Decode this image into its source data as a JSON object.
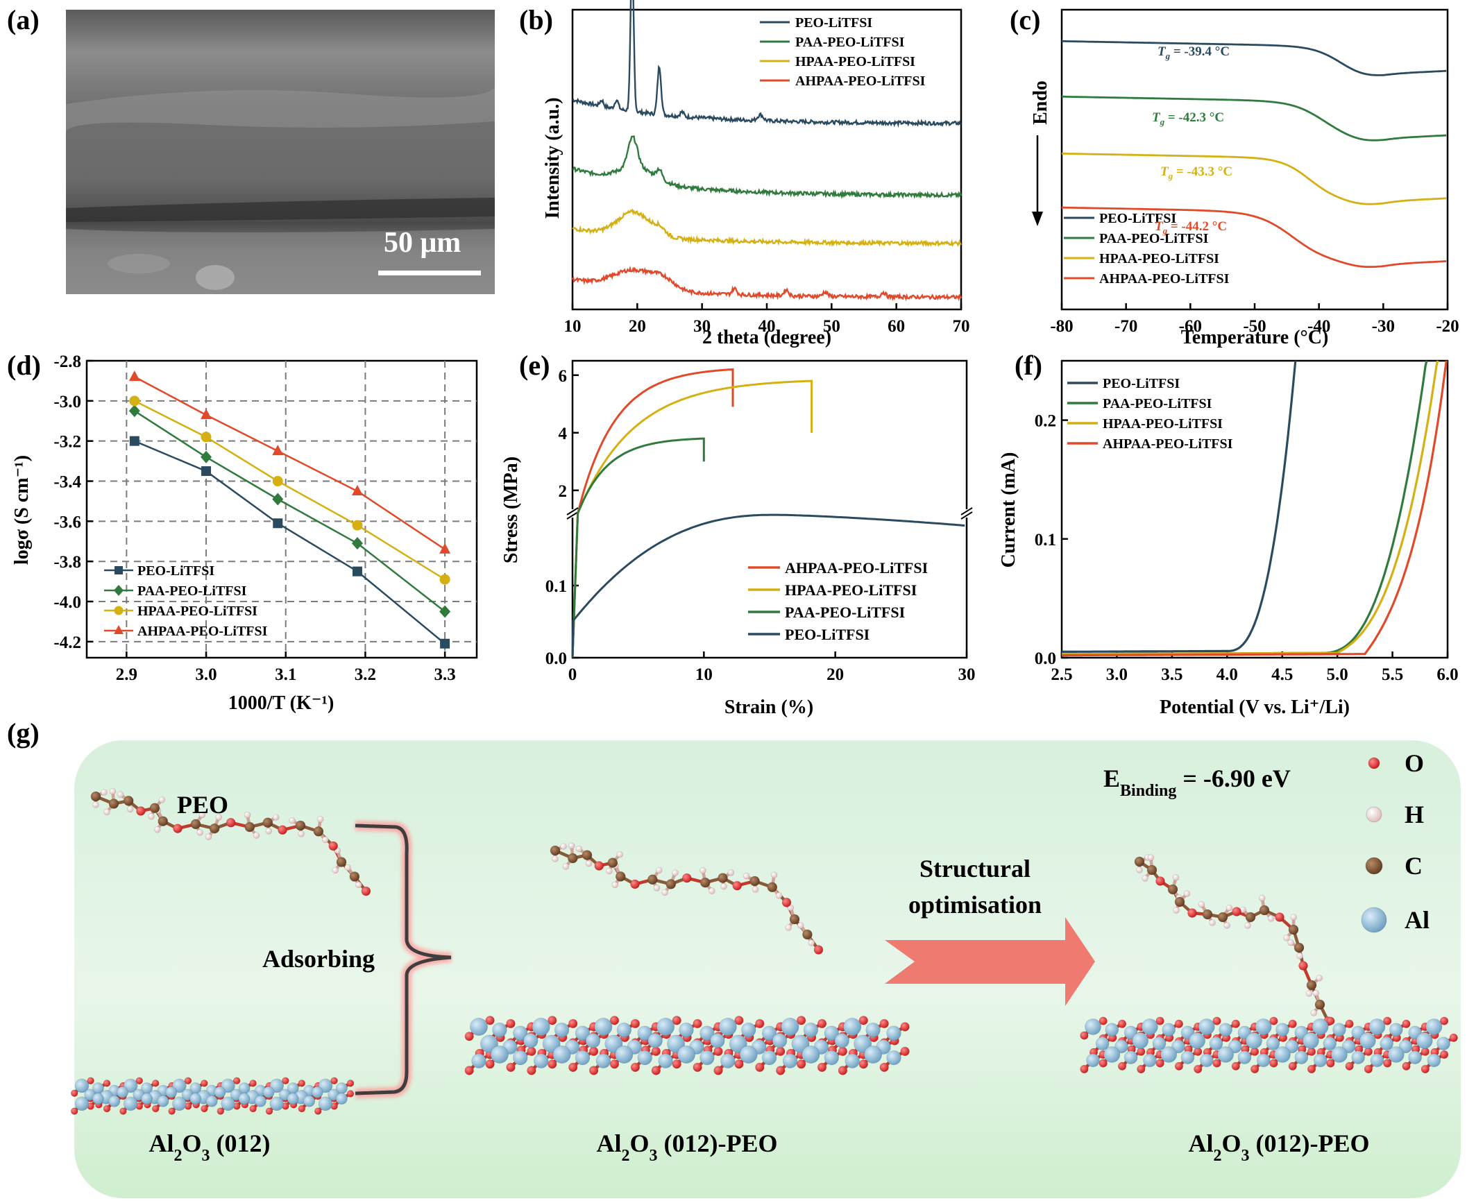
{
  "colors": {
    "peo": "#2a4a60",
    "paa": "#2f7a3c",
    "hpaa": "#d4b013",
    "ahpaa": "#e04a2a",
    "grid": "#7a7a7a",
    "green_bg": "#d8f0dc",
    "O": "#dd1f1f",
    "H": "#f2dada",
    "C": "#7a4a28",
    "Al": "#7fb4d4",
    "arrow": "#ef7a70"
  },
  "series_names": [
    "PEO-LiTFSI",
    "PAA-PEO-LiTFSI",
    "HPAA-PEO-LiTFSI",
    "AHPAA-PEO-LiTFSI"
  ],
  "panel_a": {
    "label": "(a)",
    "scale_bar": "50 μm"
  },
  "panel_g": {
    "label": "(g)",
    "peo_label": "PEO",
    "adsorbing": "Adsorbing",
    "arrow_line1": "Structural",
    "arrow_line2": "optimisation",
    "surface1": "Al₂O₃ (012)",
    "surface2": "Al₂O₃ (012)-PEO",
    "surface3": "Al₂O₃ (012)-PEO",
    "binding_energy": "E",
    "binding_sub": "Binding",
    "binding_value": " = -6.90 eV",
    "atom_legend": [
      "O",
      "H",
      "C",
      "Al"
    ]
  },
  "chart_data": [
    {
      "id": "b",
      "label": "(b)",
      "type": "line",
      "xlabel": "2 theta (degree)",
      "ylabel": "Intensity (a.u.)",
      "xlim": [
        10,
        70
      ],
      "xticks": [
        10,
        20,
        30,
        40,
        50,
        60,
        70
      ],
      "series": [
        {
          "name": "PEO-LiTFSI",
          "offset": 0.62,
          "base": 0.08,
          "peaks": [
            [
              19.2,
              0.5,
              0.35
            ],
            [
              23.4,
              0.16,
              0.4
            ],
            [
              39,
              0.02,
              0.6
            ],
            [
              14.5,
              0.02,
              0.4
            ],
            [
              16.8,
              0.03,
              0.4
            ],
            [
              26.9,
              0.015,
              0.4
            ]
          ]
        },
        {
          "name": "PAA-PEO-LiTFSI",
          "offset": 0.38,
          "base": 0.09,
          "peaks": [
            [
              19.3,
              0.1,
              1.0
            ],
            [
              23.4,
              0.03,
              0.6
            ],
            [
              20,
              0.05,
              4
            ]
          ]
        },
        {
          "name": "HPAA-PEO-LiTFSI",
          "offset": 0.22,
          "base": 0.05,
          "peaks": [
            [
              19.5,
              0.08,
              3.5
            ],
            [
              23.5,
              0.02,
              1.2
            ]
          ]
        },
        {
          "name": "AHPAA-PEO-LiTFSI",
          "offset": 0.04,
          "base": 0.06,
          "peaks": [
            [
              19.5,
              0.06,
              4.5
            ],
            [
              24,
              0.03,
              2.5
            ],
            [
              35,
              0.02,
              0.5
            ],
            [
              43,
              0.02,
              0.5
            ],
            [
              49,
              0.015,
              0.5
            ],
            [
              58,
              0.015,
              0.5
            ]
          ]
        }
      ]
    },
    {
      "id": "c",
      "label": "(c)",
      "type": "line",
      "xlabel": "Temperature (°C)",
      "ylabel": "Endo",
      "xlim": [
        -80,
        -20
      ],
      "xticks": [
        -80,
        -70,
        -60,
        -50,
        -40,
        -30,
        -20
      ],
      "series": [
        {
          "name": "PEO-LiTFSI",
          "tg_text": "-39.4 °C",
          "start": 0.895,
          "step": 0.09,
          "center": -37,
          "width": 2.2
        },
        {
          "name": "PAA-PEO-LiTFSI",
          "tg_text": "-42.3 °C",
          "start": 0.71,
          "step": 0.12,
          "center": -39.5,
          "width": 2.4
        },
        {
          "name": "HPAA-PEO-LiTFSI",
          "tg_text": "-43.3 °C",
          "start": 0.52,
          "step": 0.14,
          "center": -41.5,
          "width": 2.2
        },
        {
          "name": "AHPAA-PEO-LiTFSI",
          "tg_text": "-44.2 °C",
          "start": 0.34,
          "step": 0.17,
          "center": -44,
          "width": 2.8
        }
      ]
    },
    {
      "id": "d",
      "label": "(d)",
      "type": "line",
      "xlabel": "1000/T (K⁻¹)",
      "ylabel": "logσ (S cm⁻¹)",
      "xlim": [
        2.85,
        3.34
      ],
      "ylim": [
        -4.28,
        -2.8
      ],
      "xticks": [
        2.9,
        3.0,
        3.1,
        3.2,
        3.3
      ],
      "yticks": [
        -2.8,
        -3.0,
        -3.2,
        -3.4,
        -3.6,
        -3.8,
        -4.0,
        -4.2
      ],
      "x": [
        2.91,
        3.0,
        3.09,
        3.19,
        3.3
      ],
      "series": [
        {
          "name": "PEO-LiTFSI",
          "marker": "square",
          "values": [
            -3.2,
            -3.35,
            -3.61,
            -3.85,
            -4.21
          ]
        },
        {
          "name": "PAA-PEO-LiTFSI",
          "marker": "diamond",
          "values": [
            -3.05,
            -3.28,
            -3.49,
            -3.71,
            -4.05
          ]
        },
        {
          "name": "HPAA-PEO-LiTFSI",
          "marker": "circle",
          "values": [
            -3.0,
            -3.18,
            -3.4,
            -3.62,
            -3.89
          ]
        },
        {
          "name": "AHPAA-PEO-LiTFSI",
          "marker": "triangle",
          "values": [
            -2.88,
            -3.07,
            -3.25,
            -3.45,
            -3.74
          ]
        }
      ]
    },
    {
      "id": "e",
      "label": "(e)",
      "type": "line",
      "xlabel": "Strain (%)",
      "ylabel": "Stress (MPa)",
      "xlim": [
        0,
        30
      ],
      "xticks": [
        0,
        10,
        20,
        30
      ],
      "yticks_upper": [
        2,
        4,
        6
      ],
      "yticks_lower": [
        0.0,
        0.1
      ],
      "axis_break_note": "broken y-axis: upper segment 1.2–6.5 MPa, lower 0–0.2 MPa",
      "series": [
        {
          "name": "AHPAA-PEO-LiTFSI",
          "max_stress": 6.2,
          "fracture_strain": 12.2,
          "final_stress": 4.9
        },
        {
          "name": "HPAA-PEO-LiTFSI",
          "max_stress": 5.8,
          "fracture_strain": 18.2,
          "final_stress": 4.0
        },
        {
          "name": "PAA-PEO-LiTFSI",
          "max_stress": 3.8,
          "fracture_strain": 10.0,
          "final_stress": 3.0
        },
        {
          "name": "PEO-LiTFSI",
          "max_stress": 0.198,
          "plateau_strain": 15.5,
          "end_stress": 0.183
        }
      ]
    },
    {
      "id": "f",
      "label": "(f)",
      "type": "line",
      "xlabel": "Potential (V vs. Li⁺/Li)",
      "ylabel": "Current (mA)",
      "xlim": [
        2.5,
        6.0
      ],
      "ylim": [
        0,
        0.25
      ],
      "xticks": [
        2.5,
        3.0,
        3.5,
        4.0,
        4.5,
        5.0,
        5.5,
        6.0
      ],
      "yticks": [
        0.0,
        0.1,
        0.2
      ],
      "series": [
        {
          "name": "PEO-LiTFSI",
          "onset_v": 4.0,
          "limit_v": 4.63,
          "base": 0.005
        },
        {
          "name": "PAA-PEO-LiTFSI",
          "onset_v": 4.85,
          "limit_v": 5.82,
          "base": 0.003
        },
        {
          "name": "HPAA-PEO-LiTFSI",
          "onset_v": 5.0,
          "limit_v": 5.92,
          "base": 0.003
        },
        {
          "name": "AHPAA-PEO-LiTFSI",
          "onset_v": 5.25,
          "limit_v": 6.0,
          "base": 0.002
        }
      ]
    }
  ]
}
